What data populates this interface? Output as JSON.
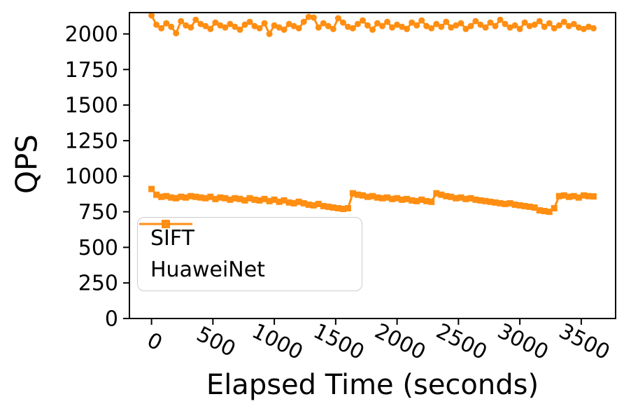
{
  "colors": {
    "accent": "#ff8e12",
    "axis": "#000000",
    "legend_border": "#cccccc"
  },
  "chart_data": {
    "type": "line",
    "title": "",
    "xlabel": "Elapsed Time (seconds)",
    "ylabel": "QPS",
    "xlim": [
      -180,
      3780
    ],
    "ylim": [
      0,
      2150
    ],
    "xticks": [
      0,
      500,
      1000,
      1500,
      2000,
      2500,
      3000,
      3500
    ],
    "yticks": [
      0,
      250,
      500,
      750,
      1000,
      1250,
      1500,
      1750,
      2000
    ],
    "grid": false,
    "legend_position": "lower left",
    "x": [
      0,
      40,
      80,
      120,
      160,
      200,
      240,
      280,
      320,
      360,
      400,
      440,
      480,
      520,
      560,
      600,
      640,
      680,
      720,
      760,
      800,
      840,
      880,
      920,
      960,
      1000,
      1040,
      1080,
      1120,
      1160,
      1200,
      1240,
      1280,
      1320,
      1360,
      1400,
      1440,
      1480,
      1520,
      1560,
      1600,
      1640,
      1680,
      1720,
      1760,
      1800,
      1840,
      1880,
      1920,
      1960,
      2000,
      2040,
      2080,
      2120,
      2160,
      2200,
      2240,
      2280,
      2320,
      2360,
      2400,
      2440,
      2480,
      2520,
      2560,
      2600,
      2640,
      2680,
      2720,
      2760,
      2800,
      2840,
      2880,
      2920,
      2960,
      3000,
      3040,
      3080,
      3120,
      3160,
      3200,
      3240,
      3280,
      3320,
      3360,
      3400,
      3440,
      3480,
      3520,
      3560,
      3600
    ],
    "series": [
      {
        "name": "SIFT",
        "marker": "circle",
        "color": "#ff8e12",
        "values": [
          2130,
          2065,
          2040,
          2075,
          2050,
          2005,
          2090,
          2060,
          2045,
          2100,
          2070,
          2055,
          2035,
          2080,
          2060,
          2045,
          2070,
          2050,
          2030,
          2065,
          2085,
          2055,
          2040,
          2075,
          2000,
          2060,
          2045,
          2030,
          2070,
          2055,
          2040,
          2085,
          2120,
          2115,
          2045,
          2075,
          2055,
          2035,
          2110,
          2080,
          2050,
          2040,
          2070,
          2095,
          2060,
          2030,
          2075,
          2055,
          2085,
          2045,
          2065,
          2050,
          2035,
          2080,
          2060,
          2095,
          2055,
          2040,
          2070,
          2050,
          2085,
          2045,
          2060,
          2075,
          2035,
          2055,
          2090,
          2065,
          2045,
          2080,
          2055,
          2100,
          2070,
          2045,
          2060,
          2035,
          2080,
          2055,
          2065,
          2090,
          2050,
          2075,
          2040,
          2060,
          2085,
          2055,
          2070,
          2045,
          2035,
          2050,
          2040
        ]
      },
      {
        "name": "HuaweiNet",
        "marker": "square",
        "color": "#ff8e12",
        "values": [
          910,
          870,
          855,
          860,
          850,
          845,
          855,
          850,
          860,
          855,
          850,
          845,
          855,
          840,
          850,
          845,
          835,
          845,
          840,
          830,
          845,
          835,
          830,
          840,
          825,
          835,
          820,
          830,
          815,
          810,
          820,
          810,
          800,
          795,
          805,
          790,
          785,
          780,
          775,
          770,
          775,
          880,
          870,
          865,
          855,
          860,
          850,
          845,
          850,
          840,
          845,
          835,
          840,
          830,
          825,
          835,
          825,
          820,
          880,
          870,
          860,
          855,
          845,
          850,
          840,
          845,
          835,
          830,
          825,
          820,
          815,
          810,
          805,
          810,
          800,
          795,
          790,
          785,
          780,
          760,
          755,
          750,
          775,
          860,
          865,
          855,
          860,
          850,
          865,
          860,
          858
        ]
      }
    ]
  }
}
